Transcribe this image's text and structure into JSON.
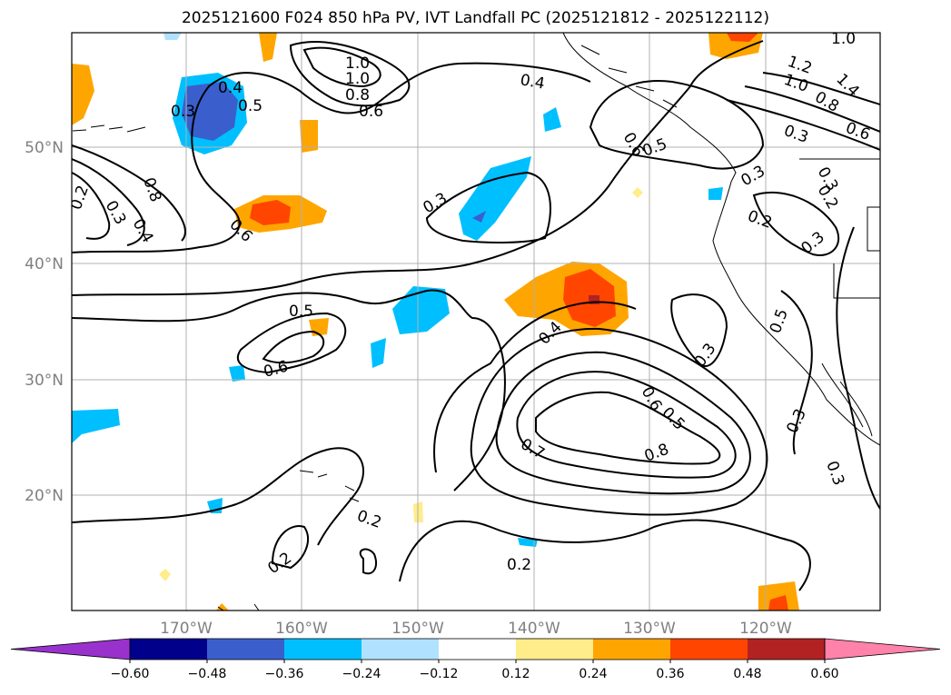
{
  "title": "2025121600 F024 850 hPa PV, IVT Landfall PC (2025121812 - 2025122112)",
  "lat_labels": [
    "50°N",
    "40°N",
    "30°N",
    "20°N"
  ],
  "lon_labels": [
    "170°W",
    "160°W",
    "150°W",
    "140°W",
    "130°W",
    "120°W"
  ],
  "contour_labels": [
    "0.4",
    "0.5",
    "0.3",
    "0.8",
    "0.2",
    "0.3",
    "0.4",
    "0.6",
    "1.0",
    "1.0",
    "0.8",
    "0.6",
    "0.4",
    "0.6",
    "0.5",
    "0.3",
    "0.3",
    "0.5",
    "0.6",
    "0.4",
    "0.6",
    "0.5",
    "0.7",
    "0.8",
    "0.3",
    "0.2",
    "0.2",
    "0.2",
    "0.3",
    "0.2",
    "0.3",
    "0.5",
    "0.3",
    "0.3",
    "1.0",
    "1.2",
    "1.0",
    "0.8",
    "1.4",
    "0.6",
    "0.3",
    "0.2"
  ],
  "colorbar": {
    "ticks": [
      "−0.60",
      "−0.48",
      "−0.36",
      "−0.24",
      "−0.12",
      "0.12",
      "0.24",
      "0.36",
      "0.48",
      "0.60"
    ],
    "colors": [
      "#9932cc",
      "#00008b",
      "#3a5fcd",
      "#00bfff",
      "#b0e2ff",
      "#ffffff",
      "#ffec8b",
      "#ffa500",
      "#ff4500",
      "#b22222",
      "#ff82ab"
    ]
  }
}
